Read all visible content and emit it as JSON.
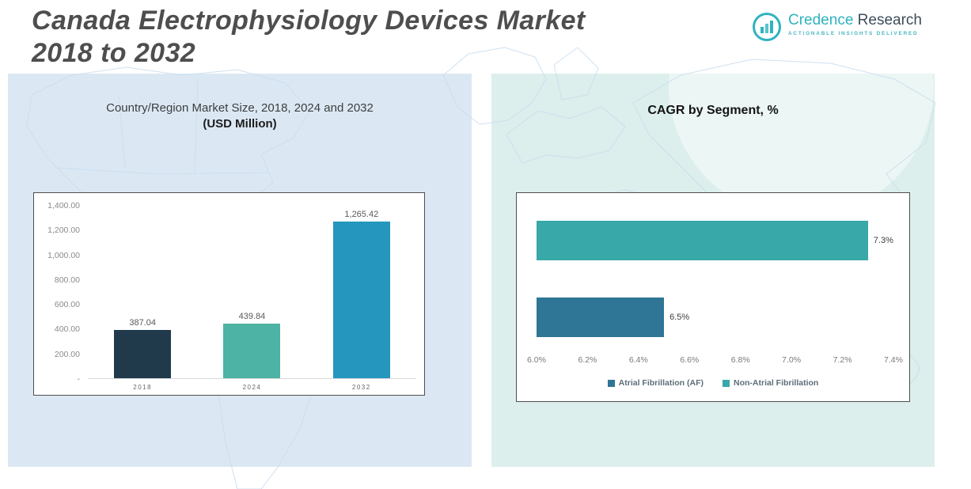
{
  "page": {
    "title_line1": "Canada Electrophysiology Devices Market",
    "title_line2": "2018 to 2032"
  },
  "logo": {
    "name_primary": "Credence",
    "name_secondary": "Research",
    "tagline": "Actionable Insights Delivered"
  },
  "colors": {
    "panel_left": "#dbe8f4",
    "panel_right": "#dcefec",
    "brand_teal": "#2fb3bf",
    "map_line": "#cadef0"
  },
  "chart_data": [
    {
      "type": "bar",
      "orientation": "vertical",
      "title": "Country/Region Market Size, 2018, 2024 and 2032",
      "subtitle": "(USD Million)",
      "categories": [
        "2018",
        "2024",
        "2032"
      ],
      "values": [
        387.04,
        439.84,
        1265.42
      ],
      "value_labels": [
        "387.04",
        "439.84",
        "1,265.42"
      ],
      "bar_colors": [
        "#203a4c",
        "#4db3a4",
        "#2596be"
      ],
      "ylim": [
        0,
        1400
      ],
      "yticks": [
        1400,
        1200,
        1000,
        800,
        600,
        400,
        200,
        0
      ],
      "ytick_labels": [
        "1,400.00",
        "1,200.00",
        "1,000.00",
        "800.00",
        "600.00",
        "400.00",
        "200.00",
        "-"
      ],
      "grid": false,
      "legend_position": "none"
    },
    {
      "type": "bar",
      "orientation": "horizontal",
      "title": "CAGR by Segment, %",
      "series": [
        {
          "name": "Non-Atrial Fibrillation",
          "value": 7.3,
          "label": "7.3%",
          "color": "#38a8a8"
        },
        {
          "name": "Atrial Fibrillation (AF)",
          "value": 6.5,
          "label": "6.5%",
          "color": "#2e7596"
        }
      ],
      "xlim": [
        6.0,
        7.4
      ],
      "xticks": [
        6.0,
        6.2,
        6.4,
        6.6,
        6.8,
        7.0,
        7.2,
        7.4
      ],
      "xtick_labels": [
        "6.0%",
        "6.2%",
        "6.4%",
        "6.6%",
        "6.8%",
        "7.0%",
        "7.2%",
        "7.4%"
      ],
      "legend": [
        {
          "label": "Atrial Fibrillation (AF)",
          "color": "#2e7596"
        },
        {
          "label": "Non-Atrial Fibrillation",
          "color": "#38a8a8"
        }
      ],
      "legend_position": "bottom",
      "grid": false
    }
  ]
}
